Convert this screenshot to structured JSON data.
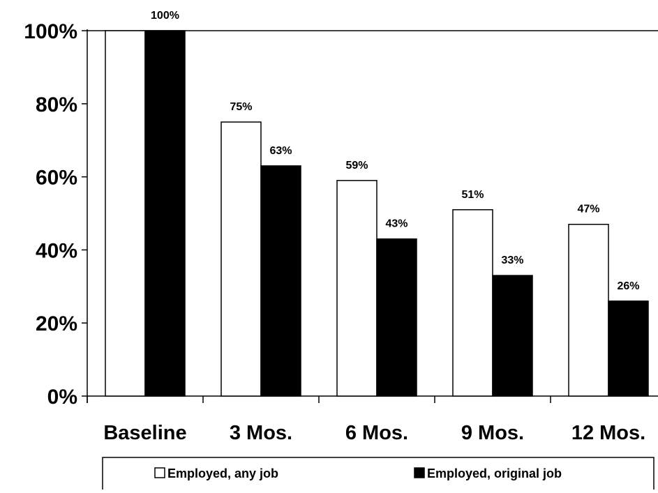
{
  "chart_data": {
    "type": "bar",
    "categories": [
      "Baseline",
      "3 Mos.",
      "6 Mos.",
      "9 Mos.",
      "12 Mos."
    ],
    "series": [
      {
        "name": "Employed, any job",
        "values": [
          100,
          75,
          59,
          51,
          47
        ],
        "color": "#ffffff"
      },
      {
        "name": "Employed, original job",
        "values": [
          100,
          63,
          43,
          33,
          26
        ],
        "color": "#000000"
      }
    ],
    "data_labels": [
      [
        null,
        "75%",
        "59%",
        "51%",
        "47%"
      ],
      [
        "100%",
        "63%",
        "43%",
        "33%",
        "26%"
      ]
    ],
    "y_ticks": [
      0,
      20,
      40,
      60,
      80,
      100
    ],
    "y_tick_labels": [
      "0%",
      "20%",
      "40%",
      "60%",
      "80%",
      "100%"
    ],
    "ylim": [
      0,
      100
    ],
    "grid": false,
    "legend": {
      "position": "bottom",
      "items": [
        {
          "label": "Employed, any job",
          "swatch": "#ffffff"
        },
        {
          "label": "Employed, original job",
          "swatch": "#000000"
        }
      ]
    }
  }
}
